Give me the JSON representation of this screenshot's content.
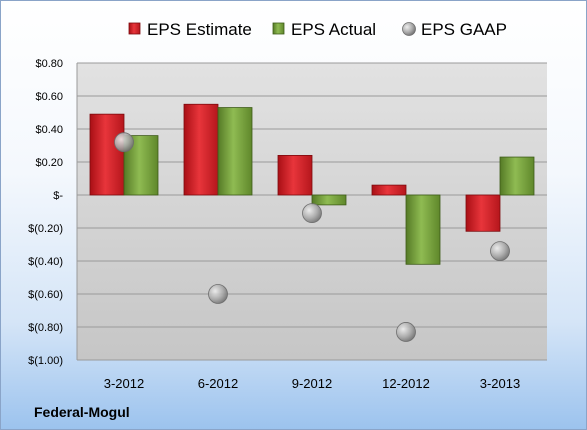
{
  "chart_data": {
    "type": "bar",
    "categories": [
      "3-2012",
      "6-2012",
      "9-2012",
      "12-2012",
      "3-2013"
    ],
    "series": [
      {
        "name": "EPS Estimate",
        "kind": "bar",
        "color": "#d9232a",
        "values": [
          0.49,
          0.55,
          0.24,
          0.06,
          -0.22
        ]
      },
      {
        "name": "EPS Actual",
        "kind": "bar",
        "color": "#79a33e",
        "values": [
          0.36,
          0.53,
          -0.06,
          -0.42,
          0.23
        ]
      },
      {
        "name": "EPS GAAP",
        "kind": "marker",
        "color": "#b4b4b4",
        "values": [
          0.32,
          -0.6,
          -0.11,
          -0.83,
          -0.34
        ]
      }
    ],
    "yticks": [
      "$0.80",
      "$0.60",
      "$0.40",
      "$0.20",
      "$-",
      "$(0.20)",
      "$(0.40)",
      "$(0.60)",
      "$(0.80)",
      "$(1.00)"
    ],
    "ytick_values": [
      0.8,
      0.6,
      0.4,
      0.2,
      0,
      -0.2,
      -0.4,
      -0.6,
      -0.8,
      -1.0
    ],
    "ylim": [
      -1.0,
      0.8
    ],
    "grid": true,
    "legend_position": "top",
    "company": "Federal-Mogul"
  }
}
